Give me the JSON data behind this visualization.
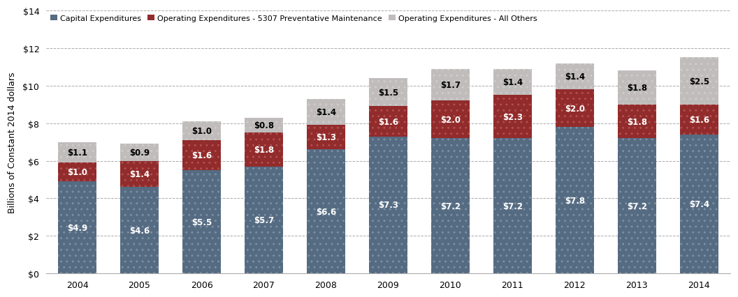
{
  "years": [
    2004,
    2005,
    2006,
    2007,
    2008,
    2009,
    2010,
    2011,
    2012,
    2013,
    2014
  ],
  "capital": [
    4.9,
    4.6,
    5.5,
    5.7,
    6.6,
    7.3,
    7.2,
    7.2,
    7.8,
    7.2,
    7.4
  ],
  "op_5307": [
    1.0,
    1.4,
    1.6,
    1.8,
    1.3,
    1.6,
    2.0,
    2.3,
    2.0,
    1.8,
    1.6
  ],
  "op_other": [
    1.1,
    0.9,
    1.0,
    0.8,
    1.4,
    1.5,
    1.7,
    1.4,
    1.4,
    1.8,
    2.5
  ],
  "capital_color": "#556b82",
  "op_5307_color": "#922b2b",
  "op_other_color": "#c0bcbc",
  "ylabel": "Billions of Constant 2014 dollars",
  "ylim": [
    0,
    14
  ],
  "yticks": [
    0,
    2,
    4,
    6,
    8,
    10,
    12,
    14
  ],
  "ytick_labels": [
    "$0",
    "$2",
    "$4",
    "$6",
    "$8",
    "$10",
    "$12",
    "$14"
  ],
  "legend_labels": [
    "Capital Expenditures",
    "Operating Expenditures - 5307 Preventative Maintenance",
    "Operating Expenditures - All Others"
  ],
  "background_color": "#ffffff",
  "grid_color": "#aaaaaa"
}
